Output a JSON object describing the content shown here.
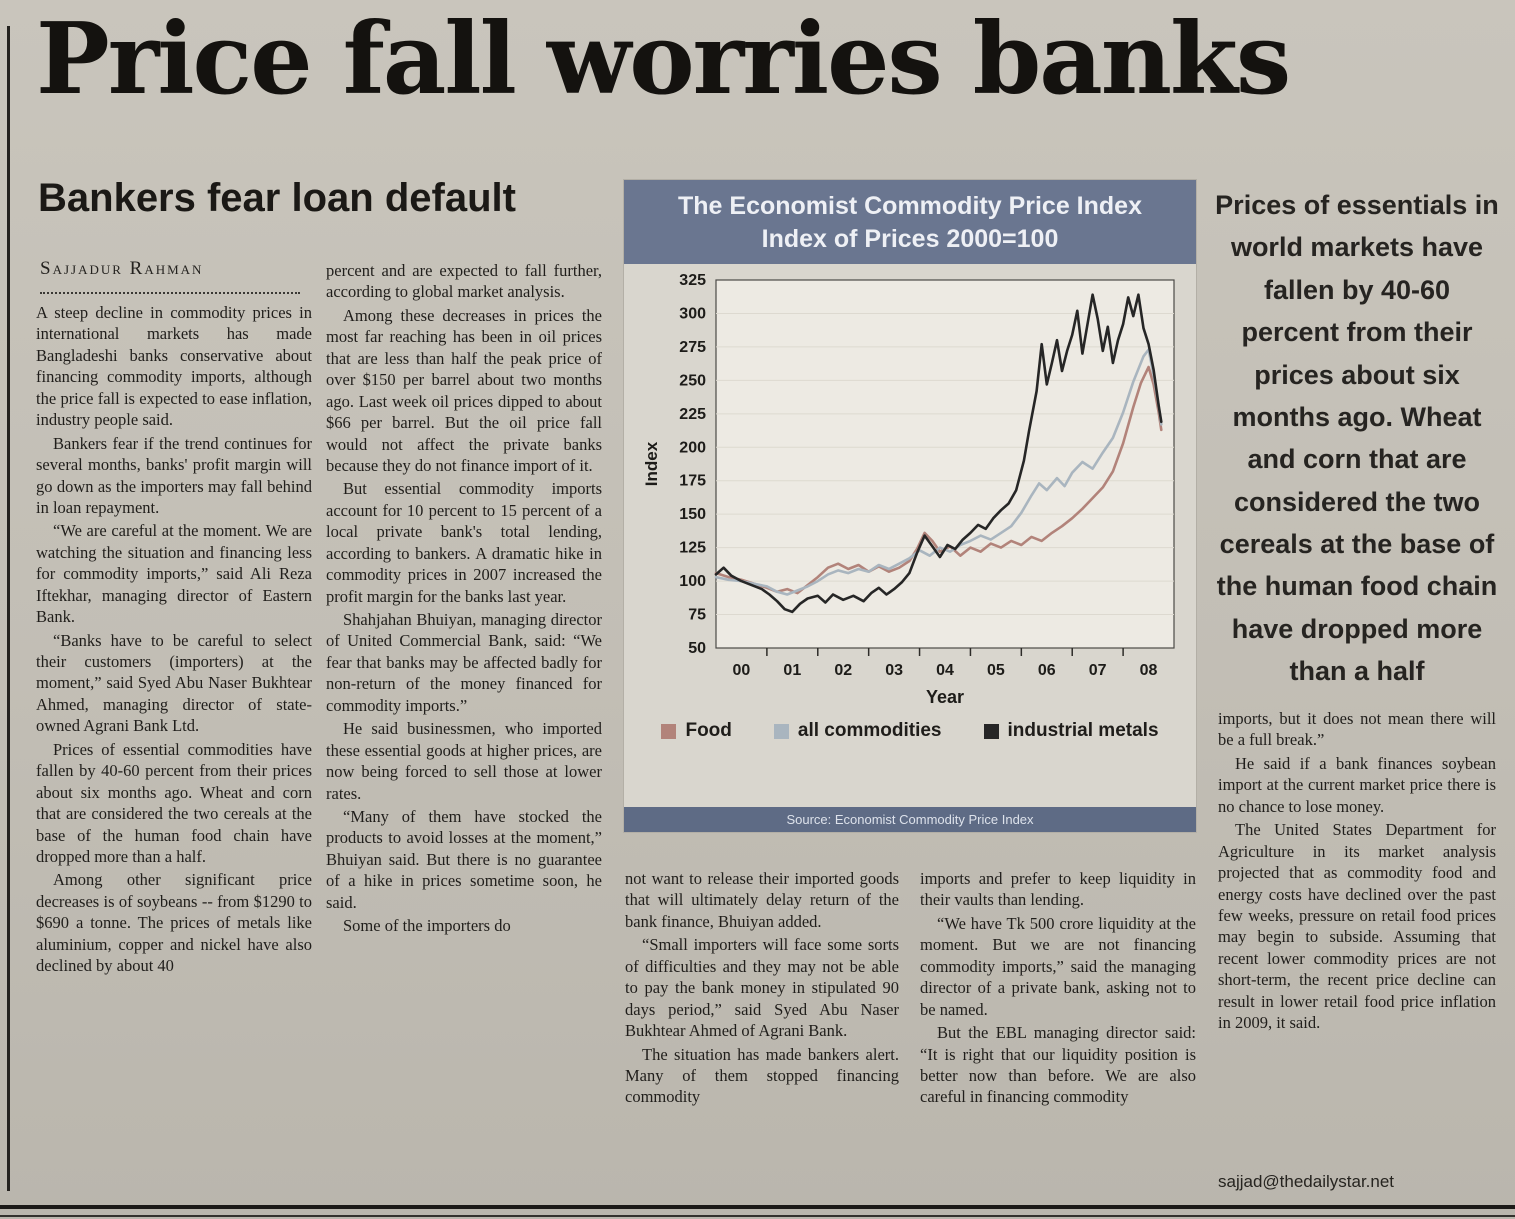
{
  "masthead": {
    "headline": "Price fall worries banks"
  },
  "article": {
    "subhead": "Bankers fear loan default",
    "byline": "Sajjadur Rahman",
    "email": "sajjad@thedailystar.net",
    "col1": [
      "A steep decline in commodity prices in international markets has made Bangladeshi banks conservative about financing commodity imports, although the price fall is expected to ease inflation, industry people said.",
      "Bankers fear if the trend continues for several months, banks' profit margin will go down as the importers may fall behind in loan repayment.",
      "“We are careful at the moment. We are watching the situation and financing less for commodity imports,” said Ali Reza Iftekhar, managing director of Eastern Bank.",
      "“Banks have to be careful to select their customers (importers) at the moment,” said Syed Abu Naser Bukhtear Ahmed, managing director of state-owned Agrani Bank Ltd.",
      "Prices of essential commodities have fallen by 40-60 percent from their prices about six months ago. Wheat and corn that are considered the two cereals at the base of the human food chain have dropped more than a half.",
      "Among other significant price decreases is of soybeans -- from $1290 to $690 a tonne. The prices of metals like aluminium, copper and nickel have also declined by about 40"
    ],
    "col2": [
      "percent and are expected to fall further, according to global market analysis.",
      "Among these decreases in prices the most far reaching has been in oil prices that are less than half the peak price of over $150 per barrel about two months ago. Last week oil prices dipped to about $66 per barrel. But the oil price fall would not affect the private banks because they do not finance import of it.",
      "But essential commodity imports account for 10 percent to 15 percent of a local private bank's total lending, according to bankers. A dramatic hike in commodity prices in 2007 increased the profit margin for the banks last year.",
      "Shahjahan Bhuiyan, managing director of United Commercial Bank, said: “We fear that banks may be affected badly for non-return of the money financed for commodity imports.”",
      "He said businessmen, who imported these essential goods at higher prices, are now being forced to sell those at lower rates.",
      "“Many of them have stocked the products to avoid losses at the moment,” Bhuiyan said. But there is no guarantee of a hike in prices sometime soon, he said.",
      "Some of the importers do"
    ],
    "col3": [
      "not want to release their imported goods that will ultimately delay return of the bank finance, Bhuiyan added.",
      "“Small importers will face some sorts of difficulties and they may not be able to pay the bank money in stipulated 90 days period,” said Syed Abu Naser Bukhtear Ahmed of Agrani Bank.",
      "The situation has made bankers alert. Many of them stopped financing commodity"
    ],
    "col4": [
      "imports and prefer to keep liquidity in their vaults than lending.",
      "“We have Tk 500 crore liquidity at the moment. But we are not financing commodity imports,” said the managing director of a private bank, asking not to be named.",
      "But the EBL managing director said: “It is right that our liquidity position is better now than before. We are also careful in financing commodity"
    ],
    "col5": [
      "imports, but it does not mean there will be a full break.”",
      "He said if a bank finances soybean import at the current market price there is no chance to lose money.",
      "The United States Department for Agriculture in its market analysis projected that as commodity food and energy costs have declined over the past few weeks, pressure on retail food prices may begin to subside. Assuming that recent lower commodity prices are not short-term, the recent price decline can result in lower retail food price inflation in 2009, it said."
    ]
  },
  "pullquote": "Prices of essentials in world markets have fallen by 40-60 percent from their prices about six months ago. Wheat and corn that are considered the two cereals at the base of the human food chain have dropped more than a half",
  "chart_data": {
    "type": "line",
    "title": "The Economist Commodity Price Index",
    "subtitle": "Index of Prices 2000=100",
    "xlabel": "Year",
    "ylabel": "Index",
    "ylim": [
      50,
      325
    ],
    "ytick_step": 25,
    "xticklabels": [
      "00",
      "01",
      "02",
      "03",
      "04",
      "05",
      "06",
      "07",
      "08"
    ],
    "grid": false,
    "legend_position": "bottom",
    "source": "Source: Economist Commodity Price Index",
    "series": [
      {
        "name": "Food",
        "color": "#b2837a",
        "points": [
          [
            0,
            106
          ],
          [
            0.25,
            103
          ],
          [
            0.5,
            101
          ],
          [
            0.75,
            98
          ],
          [
            1,
            95
          ],
          [
            1.2,
            92
          ],
          [
            1.4,
            94
          ],
          [
            1.6,
            91
          ],
          [
            1.8,
            97
          ],
          [
            2,
            103
          ],
          [
            2.2,
            110
          ],
          [
            2.4,
            113
          ],
          [
            2.6,
            109
          ],
          [
            2.8,
            112
          ],
          [
            3,
            107
          ],
          [
            3.2,
            111
          ],
          [
            3.4,
            107
          ],
          [
            3.6,
            110
          ],
          [
            3.8,
            115
          ],
          [
            3.95,
            124
          ],
          [
            4.1,
            136
          ],
          [
            4.25,
            130
          ],
          [
            4.4,
            122
          ],
          [
            4.6,
            126
          ],
          [
            4.8,
            119
          ],
          [
            5,
            125
          ],
          [
            5.2,
            122
          ],
          [
            5.4,
            128
          ],
          [
            5.6,
            125
          ],
          [
            5.8,
            130
          ],
          [
            6,
            127
          ],
          [
            6.2,
            133
          ],
          [
            6.4,
            130
          ],
          [
            6.6,
            136
          ],
          [
            6.8,
            141
          ],
          [
            7,
            147
          ],
          [
            7.2,
            154
          ],
          [
            7.4,
            162
          ],
          [
            7.6,
            170
          ],
          [
            7.8,
            182
          ],
          [
            8,
            203
          ],
          [
            8.2,
            230
          ],
          [
            8.35,
            248
          ],
          [
            8.5,
            260
          ],
          [
            8.6,
            247
          ],
          [
            8.7,
            226
          ],
          [
            8.75,
            213
          ]
        ]
      },
      {
        "name": "all commodities",
        "color": "#a9b5bf",
        "points": [
          [
            0,
            103
          ],
          [
            0.25,
            101
          ],
          [
            0.5,
            100
          ],
          [
            0.75,
            98
          ],
          [
            1,
            96
          ],
          [
            1.2,
            92
          ],
          [
            1.4,
            90
          ],
          [
            1.6,
            93
          ],
          [
            1.8,
            96
          ],
          [
            2,
            100
          ],
          [
            2.2,
            105
          ],
          [
            2.4,
            108
          ],
          [
            2.6,
            106
          ],
          [
            2.8,
            109
          ],
          [
            3,
            107
          ],
          [
            3.2,
            112
          ],
          [
            3.4,
            109
          ],
          [
            3.6,
            113
          ],
          [
            3.8,
            117
          ],
          [
            4,
            123
          ],
          [
            4.2,
            119
          ],
          [
            4.4,
            125
          ],
          [
            4.6,
            122
          ],
          [
            4.8,
            127
          ],
          [
            5,
            130
          ],
          [
            5.2,
            134
          ],
          [
            5.4,
            131
          ],
          [
            5.6,
            136
          ],
          [
            5.8,
            141
          ],
          [
            6,
            151
          ],
          [
            6.2,
            164
          ],
          [
            6.35,
            173
          ],
          [
            6.5,
            168
          ],
          [
            6.7,
            177
          ],
          [
            6.85,
            171
          ],
          [
            7,
            181
          ],
          [
            7.2,
            189
          ],
          [
            7.4,
            184
          ],
          [
            7.6,
            196
          ],
          [
            7.8,
            207
          ],
          [
            8,
            226
          ],
          [
            8.2,
            249
          ],
          [
            8.4,
            268
          ],
          [
            8.5,
            273
          ],
          [
            8.6,
            254
          ],
          [
            8.7,
            231
          ],
          [
            8.75,
            217
          ]
        ]
      },
      {
        "name": "industrial metals",
        "color": "#262626",
        "points": [
          [
            0,
            105
          ],
          [
            0.15,
            110
          ],
          [
            0.3,
            104
          ],
          [
            0.5,
            100
          ],
          [
            0.7,
            97
          ],
          [
            0.9,
            94
          ],
          [
            1.05,
            90
          ],
          [
            1.2,
            85
          ],
          [
            1.35,
            79
          ],
          [
            1.5,
            77
          ],
          [
            1.65,
            83
          ],
          [
            1.8,
            87
          ],
          [
            2,
            89
          ],
          [
            2.15,
            84
          ],
          [
            2.3,
            90
          ],
          [
            2.5,
            86
          ],
          [
            2.7,
            89
          ],
          [
            2.9,
            85
          ],
          [
            3.05,
            91
          ],
          [
            3.2,
            95
          ],
          [
            3.35,
            90
          ],
          [
            3.5,
            94
          ],
          [
            3.65,
            99
          ],
          [
            3.8,
            106
          ],
          [
            3.95,
            121
          ],
          [
            4.1,
            134
          ],
          [
            4.25,
            126
          ],
          [
            4.4,
            118
          ],
          [
            4.55,
            127
          ],
          [
            4.7,
            124
          ],
          [
            4.85,
            131
          ],
          [
            5,
            136
          ],
          [
            5.15,
            142
          ],
          [
            5.3,
            139
          ],
          [
            5.45,
            147
          ],
          [
            5.6,
            153
          ],
          [
            5.75,
            158
          ],
          [
            5.9,
            168
          ],
          [
            6.05,
            190
          ],
          [
            6.15,
            212
          ],
          [
            6.3,
            242
          ],
          [
            6.4,
            277
          ],
          [
            6.5,
            247
          ],
          [
            6.6,
            263
          ],
          [
            6.7,
            280
          ],
          [
            6.8,
            257
          ],
          [
            6.9,
            272
          ],
          [
            7,
            284
          ],
          [
            7.1,
            302
          ],
          [
            7.2,
            270
          ],
          [
            7.3,
            292
          ],
          [
            7.4,
            314
          ],
          [
            7.5,
            296
          ],
          [
            7.6,
            272
          ],
          [
            7.7,
            290
          ],
          [
            7.8,
            263
          ],
          [
            7.9,
            280
          ],
          [
            8,
            292
          ],
          [
            8.1,
            312
          ],
          [
            8.2,
            298
          ],
          [
            8.3,
            314
          ],
          [
            8.4,
            289
          ],
          [
            8.5,
            277
          ],
          [
            8.6,
            258
          ],
          [
            8.7,
            231
          ],
          [
            8.75,
            219
          ]
        ]
      }
    ]
  }
}
